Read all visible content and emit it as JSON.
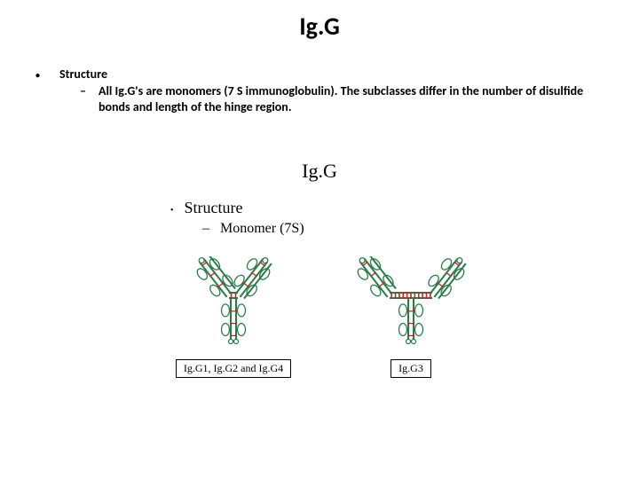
{
  "title": "Ig.G",
  "structure_heading": "Structure",
  "structure_bullet": "All Ig.G's are monomers (7 S immunoglobulin). The subclasses differ in the number of disulfide bonds and length of the hinge region.",
  "inner": {
    "title": "Ig.G",
    "b1": "Structure",
    "b2": "Monomer (7S)"
  },
  "diagrams": {
    "left_caption": "Ig.G1, Ig.G2 and Ig.G4",
    "right_caption": "Ig.G3",
    "colors": {
      "outline": "#2a7a4a",
      "heavy_fill": "#ffffff",
      "disulfide": "#cc2222",
      "domain_outline": "#2a7a4a",
      "label_text": "#000000"
    },
    "left_disulfide_count": 2,
    "right_disulfide_count": 11
  }
}
